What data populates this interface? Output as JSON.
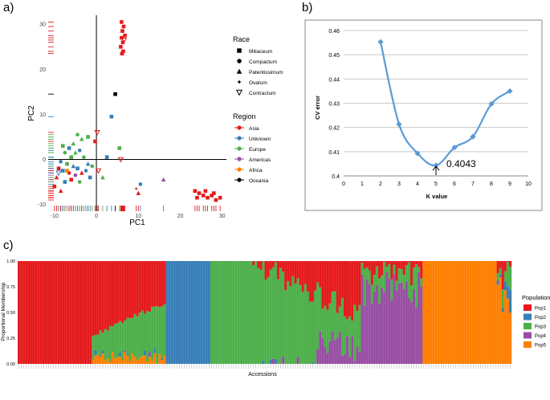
{
  "panel_labels": {
    "a": "a)",
    "b": "b)",
    "c": "c)"
  },
  "colors": {
    "Asia": "#e41a1c",
    "Unknown": "#377eb8",
    "Europe": "#4daf4a",
    "Americas": "#984ea3",
    "Africa": "#ff7f00",
    "Oceania": "#000000",
    "Pop1": "#e41a1c",
    "Pop2": "#377eb8",
    "Pop3": "#4daf4a",
    "Pop4": "#984ea3",
    "Pop5": "#ff7f00",
    "cv_line": "#5b9bd5",
    "grid": "#c8c8c8"
  },
  "chart_data": [
    {
      "type": "scatter",
      "id": "pca",
      "xlabel": "PC1",
      "ylabel": "PC2",
      "xlim": [
        -11.5,
        31
      ],
      "ylim": [
        -11.5,
        32
      ],
      "xticks": [
        "-10",
        "0",
        "10",
        "20",
        "30"
      ],
      "xtick_values": [
        -10,
        0,
        10,
        20,
        30
      ],
      "yticks": [
        "-10",
        "0",
        "10",
        "20",
        "30"
      ],
      "ytick_values": [
        -10,
        0,
        10,
        20,
        30
      ],
      "race_legend_title": "Race",
      "race_legend": [
        {
          "label": "Miliaceum",
          "shape": "square"
        },
        {
          "label": "Compactum",
          "shape": "circle"
        },
        {
          "label": "Patentissimum",
          "shape": "triangle"
        },
        {
          "label": "Ovatum",
          "shape": "star"
        },
        {
          "label": "Contractum",
          "shape": "triangle-down-open"
        }
      ],
      "region_legend_title": "Region",
      "region_legend": [
        "Asia",
        "Unknown",
        "Europe",
        "Americas",
        "Africa",
        "Oceania"
      ],
      "points": [
        {
          "x": 6.0,
          "y": 30.5,
          "r": "Asia",
          "s": "square"
        },
        {
          "x": 6.5,
          "y": 29.5,
          "r": "Asia",
          "s": "square"
        },
        {
          "x": 6.2,
          "y": 28.5,
          "r": "Asia",
          "s": "square"
        },
        {
          "x": 6.8,
          "y": 27.5,
          "r": "Asia",
          "s": "square"
        },
        {
          "x": 6.0,
          "y": 27.0,
          "r": "Asia",
          "s": "square"
        },
        {
          "x": 6.6,
          "y": 26.5,
          "r": "Asia",
          "s": "triangle-down-open"
        },
        {
          "x": 6.3,
          "y": 26.0,
          "r": "Asia",
          "s": "square"
        },
        {
          "x": 5.8,
          "y": 25.0,
          "r": "Asia",
          "s": "square"
        },
        {
          "x": 6.4,
          "y": 24.0,
          "r": "Asia",
          "s": "square"
        },
        {
          "x": 6.1,
          "y": 23.5,
          "r": "Asia",
          "s": "square"
        },
        {
          "x": 4.5,
          "y": 14.5,
          "r": "Oceania",
          "s": "square"
        },
        {
          "x": 3.6,
          "y": 9.5,
          "r": "Unknown",
          "s": "square"
        },
        {
          "x": 0.2,
          "y": 6.0,
          "r": "Asia",
          "s": "triangle-down-open"
        },
        {
          "x": -0.3,
          "y": 4.0,
          "r": "Asia",
          "s": "square"
        },
        {
          "x": -3.5,
          "y": 4.5,
          "r": "Europe",
          "s": "triangle"
        },
        {
          "x": -4.5,
          "y": 5.5,
          "r": "Europe",
          "s": "circle"
        },
        {
          "x": -5.5,
          "y": 3.5,
          "r": "Europe",
          "s": "triangle"
        },
        {
          "x": -2.0,
          "y": 5.0,
          "r": "Europe",
          "s": "square"
        },
        {
          "x": -6.5,
          "y": 2.5,
          "r": "Unknown",
          "s": "square"
        },
        {
          "x": -7.5,
          "y": 1.5,
          "r": "Europe",
          "s": "circle"
        },
        {
          "x": -8.0,
          "y": 3.0,
          "r": "Europe",
          "s": "square"
        },
        {
          "x": -5.0,
          "y": 1.5,
          "r": "Europe",
          "s": "triangle"
        },
        {
          "x": -4.0,
          "y": 2.0,
          "r": "Unknown",
          "s": "circle"
        },
        {
          "x": -6.0,
          "y": 0.5,
          "r": "Europe",
          "s": "square"
        },
        {
          "x": -3.0,
          "y": 0.5,
          "r": "Europe",
          "s": "circle"
        },
        {
          "x": -8.5,
          "y": -0.5,
          "r": "Unknown",
          "s": "circle"
        },
        {
          "x": -7.0,
          "y": -1.0,
          "r": "Europe",
          "s": "square"
        },
        {
          "x": -5.5,
          "y": -1.5,
          "r": "Unknown",
          "s": "triangle"
        },
        {
          "x": -9.0,
          "y": -2.0,
          "r": "Asia",
          "s": "square"
        },
        {
          "x": -8.0,
          "y": -2.5,
          "r": "Unknown",
          "s": "square"
        },
        {
          "x": -6.5,
          "y": -3.0,
          "r": "Asia",
          "s": "circle"
        },
        {
          "x": -4.5,
          "y": -2.0,
          "r": "Unknown",
          "s": "square"
        },
        {
          "x": -3.5,
          "y": -3.0,
          "r": "Asia",
          "s": "triangle"
        },
        {
          "x": -2.5,
          "y": -2.5,
          "r": "Unknown",
          "s": "circle"
        },
        {
          "x": -9.5,
          "y": -4.0,
          "r": "Asia",
          "s": "triangle"
        },
        {
          "x": -7.5,
          "y": -5.0,
          "r": "Unknown",
          "s": "square"
        },
        {
          "x": -6.0,
          "y": -4.5,
          "r": "Asia",
          "s": "square"
        },
        {
          "x": -4.0,
          "y": -5.0,
          "r": "Europe",
          "s": "circle"
        },
        {
          "x": -10.0,
          "y": -6.0,
          "r": "Asia",
          "s": "square"
        },
        {
          "x": -8.5,
          "y": -7.0,
          "r": "Asia",
          "s": "triangle"
        },
        {
          "x": -1.5,
          "y": -4.0,
          "r": "Unknown",
          "s": "square"
        },
        {
          "x": -1.0,
          "y": -1.5,
          "r": "Europe",
          "s": "circle"
        },
        {
          "x": -7.0,
          "y": -2.5,
          "r": "Africa",
          "s": "square"
        },
        {
          "x": -5.0,
          "y": -3.5,
          "r": "Americas",
          "s": "circle"
        },
        {
          "x": -2.0,
          "y": -1.0,
          "r": "Unknown",
          "s": "triangle"
        },
        {
          "x": -9.0,
          "y": -3.0,
          "r": "Unknown",
          "s": "triangle-down-open"
        },
        {
          "x": 0.5,
          "y": -2.5,
          "r": "Asia",
          "s": "triangle-down-open"
        },
        {
          "x": 1.5,
          "y": -4.0,
          "r": "Europe",
          "s": "triangle"
        },
        {
          "x": 2.5,
          "y": 0.5,
          "r": "Unknown",
          "s": "square"
        },
        {
          "x": 5.5,
          "y": 2.5,
          "r": "Europe",
          "s": "square"
        },
        {
          "x": 5.8,
          "y": 0.0,
          "r": "Asia",
          "s": "triangle-down-open"
        },
        {
          "x": 9.5,
          "y": -6.5,
          "r": "Asia",
          "s": "star"
        },
        {
          "x": 10.5,
          "y": -5.5,
          "r": "Unknown",
          "s": "circle"
        },
        {
          "x": 10.0,
          "y": -7.5,
          "r": "Asia",
          "s": "triangle"
        },
        {
          "x": 16.0,
          "y": -4.5,
          "r": "Americas",
          "s": "triangle"
        },
        {
          "x": 23.5,
          "y": -7.0,
          "r": "Asia",
          "s": "square"
        },
        {
          "x": 24.5,
          "y": -7.5,
          "r": "Asia",
          "s": "square"
        },
        {
          "x": 25.5,
          "y": -8.0,
          "r": "Asia",
          "s": "square"
        },
        {
          "x": 26.5,
          "y": -8.5,
          "r": "Asia",
          "s": "square"
        },
        {
          "x": 27.5,
          "y": -8.0,
          "r": "Asia",
          "s": "square"
        },
        {
          "x": 28.5,
          "y": -9.0,
          "r": "Asia",
          "s": "square"
        },
        {
          "x": 29.5,
          "y": -8.5,
          "r": "Asia",
          "s": "square"
        },
        {
          "x": 24.0,
          "y": -8.5,
          "r": "Asia",
          "s": "square"
        },
        {
          "x": 26.0,
          "y": -7.0,
          "r": "Asia",
          "s": "square"
        },
        {
          "x": 28.0,
          "y": -7.5,
          "r": "Asia",
          "s": "square"
        }
      ]
    },
    {
      "type": "line",
      "id": "cv",
      "xlabel": "K value",
      "ylabel": "CV error",
      "xlim": [
        0,
        10
      ],
      "ylim": [
        0.4,
        0.46
      ],
      "xticks": [
        "0",
        "1",
        "2",
        "3",
        "4",
        "5",
        "6",
        "7",
        "8",
        "9",
        "10"
      ],
      "yticks": [
        "0.4",
        "0.41",
        "0.42",
        "0.43",
        "0.44",
        "0.45",
        "0.46"
      ],
      "ytick_values": [
        0.4,
        0.41,
        0.42,
        0.43,
        0.44,
        0.45,
        0.46
      ],
      "x": [
        2,
        3,
        4,
        5,
        6,
        7,
        8,
        9
      ],
      "y": [
        0.4553,
        0.4213,
        0.4093,
        0.4043,
        0.4117,
        0.4162,
        0.4297,
        0.435
      ],
      "annotation": {
        "x": 5,
        "y": 0.4043,
        "text": "0.4043"
      }
    },
    {
      "type": "bar",
      "id": "structure",
      "stacked": true,
      "xlabel": "Accessions",
      "ylabel": "Proportional Membership",
      "ylim": [
        0,
        1
      ],
      "yticks": [
        "0.00",
        "0.25",
        "0.50",
        "0.75",
        "1.00"
      ],
      "ytick_values": [
        0,
        0.25,
        0.5,
        0.75,
        1
      ],
      "legend_title": "Population",
      "series_names": [
        "Pop1",
        "Pop2",
        "Pop3",
        "Pop4",
        "Pop5"
      ],
      "n_accessions": 200,
      "segments": [
        {
          "start": 0,
          "end": 60,
          "composition": "pop1-dominant; from accession 30 onward pop1 declines from 0.72 to 0.42 with pop3 below and small pop5/pop2/pop4 at the base"
        },
        {
          "start": 60,
          "end": 78,
          "composition": "pop2 = 1.0"
        },
        {
          "start": 78,
          "end": 139,
          "composition": "pop3-dominant; from accession 95 increasing pop1 on top, pop4 appears near the end"
        },
        {
          "start": 139,
          "end": 164,
          "composition": "pop4-dominant with mixed pop1/pop3 tops"
        },
        {
          "start": 164,
          "end": 200,
          "composition": "pop5-dominant; last few accessions mixed with pop1/pop2/pop3"
        }
      ]
    }
  ]
}
